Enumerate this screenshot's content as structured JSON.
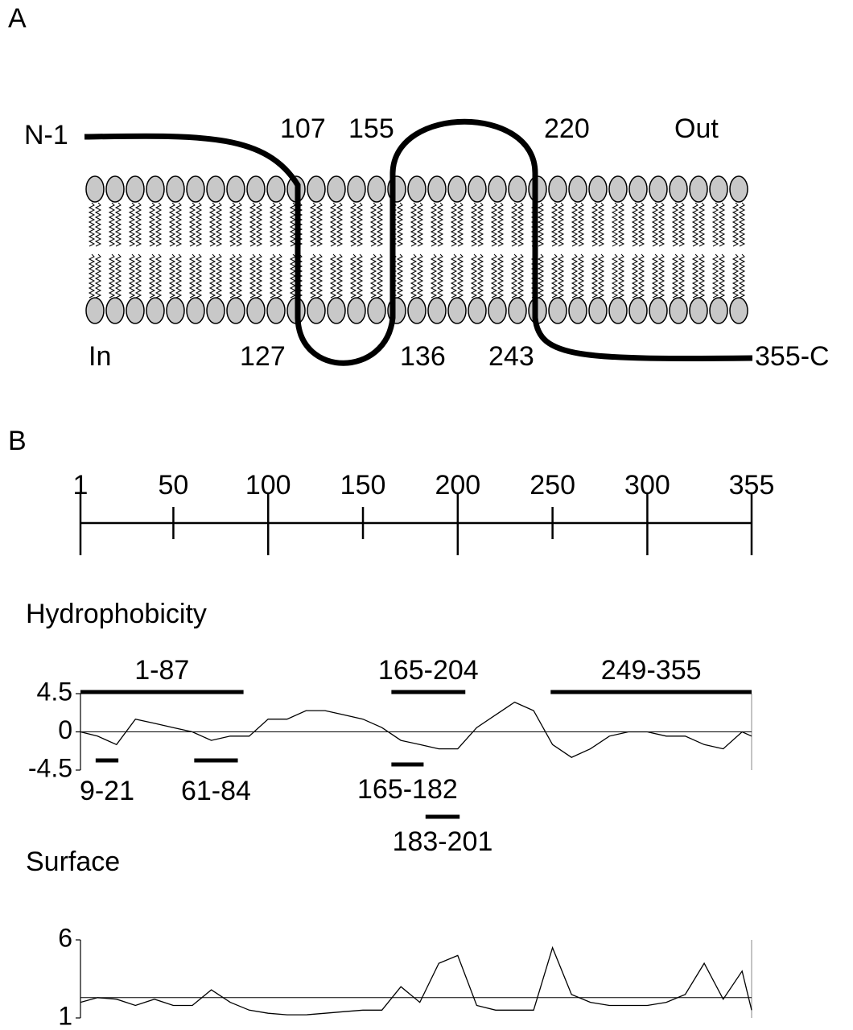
{
  "panel_a": {
    "label": "A",
    "n_term": "N-1",
    "c_term": "355-C",
    "outside": "Out",
    "inside": "In",
    "residues_top": [
      "107",
      "155",
      "220"
    ],
    "residues_bottom": [
      "127",
      "136",
      "243"
    ]
  },
  "panel_b": {
    "label": "B",
    "ruler": {
      "xlim": [
        1,
        355
      ],
      "xticks": [
        1,
        50,
        100,
        150,
        200,
        250,
        300,
        355
      ]
    },
    "hydrophobicity": {
      "type": "line",
      "title": "Hydrophobicity",
      "xlim": [
        1,
        355
      ],
      "ylim": [
        -4.5,
        4.5
      ],
      "yticks": [
        4.5,
        0,
        -4.5
      ],
      "reference_line": 0,
      "x": [
        1,
        10,
        20,
        30,
        40,
        50,
        60,
        70,
        80,
        90,
        100,
        110,
        120,
        130,
        140,
        150,
        160,
        170,
        180,
        190,
        200,
        210,
        220,
        230,
        240,
        250,
        260,
        270,
        280,
        290,
        300,
        310,
        320,
        330,
        340,
        350,
        355
      ],
      "values": [
        0,
        -0.5,
        -1.5,
        1.5,
        1,
        0.5,
        0,
        -1,
        -0.5,
        -0.5,
        1.5,
        1.5,
        2.5,
        2.5,
        2,
        1.5,
        0.5,
        -1,
        -1.5,
        -2,
        -2,
        0.5,
        2,
        3.5,
        2.5,
        -1.5,
        -3,
        -2,
        -0.5,
        0,
        0,
        -0.5,
        -0.5,
        -1.5,
        -2,
        0,
        -0.5
      ],
      "segments_above": [
        {
          "label": "1-87",
          "start": 1,
          "end": 87
        },
        {
          "label": "165-204",
          "start": 165,
          "end": 204
        },
        {
          "label": "249-355",
          "start": 249,
          "end": 355
        }
      ],
      "segments_below": [
        {
          "label": "9-21",
          "start": 9,
          "end": 21
        },
        {
          "label": "61-84",
          "start": 61,
          "end": 84
        },
        {
          "label": "165-182",
          "start": 165,
          "end": 182
        },
        {
          "label": "183-201",
          "start": 183,
          "end": 201
        }
      ]
    },
    "surface": {
      "type": "line",
      "title": "Surface",
      "xlim": [
        1,
        355
      ],
      "ylim": [
        1,
        6
      ],
      "yticks": [
        6,
        1
      ],
      "reference_line": 2.3,
      "x": [
        1,
        10,
        20,
        30,
        40,
        50,
        60,
        70,
        80,
        90,
        100,
        110,
        120,
        130,
        140,
        150,
        160,
        170,
        180,
        190,
        200,
        210,
        220,
        230,
        240,
        250,
        260,
        270,
        280,
        290,
        300,
        310,
        320,
        330,
        340,
        350,
        355
      ],
      "values": [
        2,
        2.3,
        2.2,
        1.8,
        2.2,
        1.8,
        1.8,
        2.8,
        2,
        1.5,
        1.3,
        1.2,
        1.2,
        1.3,
        1.4,
        1.5,
        1.5,
        3,
        2,
        4.5,
        5,
        1.8,
        1.5,
        1.5,
        1.5,
        5.5,
        2.5,
        2,
        1.8,
        1.8,
        1.8,
        2,
        2.5,
        4.5,
        2.2,
        4,
        1.5
      ]
    }
  }
}
